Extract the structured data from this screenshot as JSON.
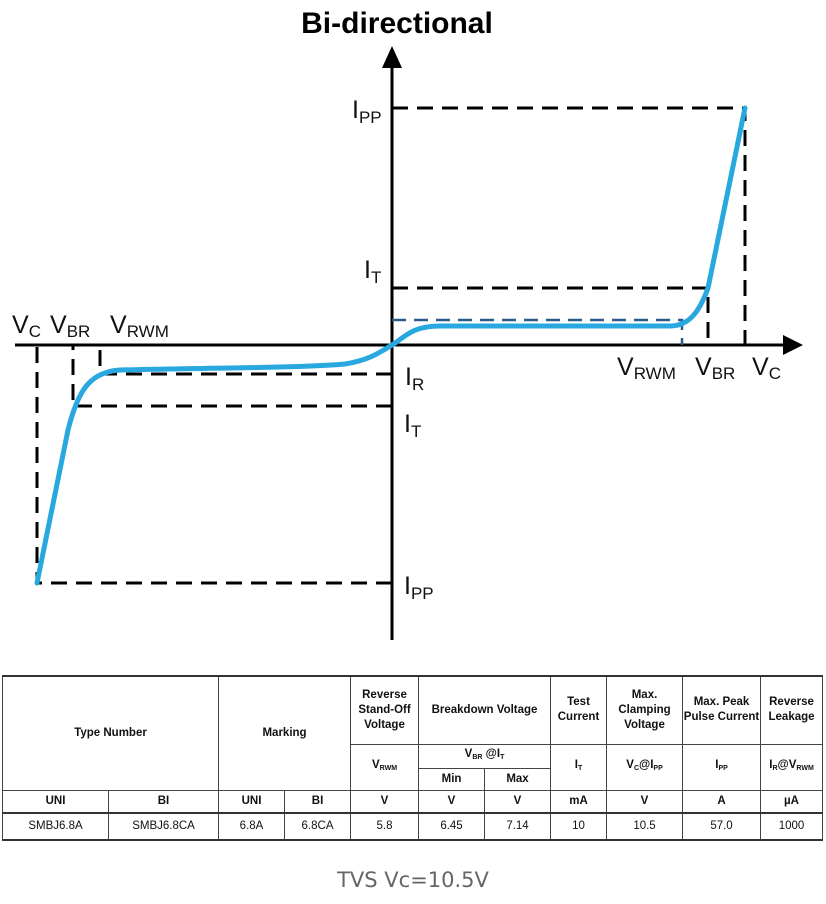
{
  "title": "Bi-directional",
  "labels": {
    "ipp_top": [
      "I",
      "PP"
    ],
    "it_top": [
      "I",
      "T"
    ],
    "vc_left": [
      "V",
      "C"
    ],
    "vbr_left": [
      "V",
      "BR"
    ],
    "vrwm_left": [
      "V",
      "RWM"
    ],
    "vrwm_right": [
      "V",
      "RWM"
    ],
    "vbr_right": [
      "V",
      "BR"
    ],
    "vc_right": [
      "V",
      "C"
    ],
    "ir": [
      "I",
      "R"
    ],
    "it_bottom": [
      "I",
      "T"
    ],
    "ipp_bottom": [
      "I",
      "PP"
    ]
  },
  "colors": {
    "curve": "#29a8e0",
    "vrwm_dash": "#2d5a8c",
    "axis": "#000000"
  },
  "table": {
    "headers": {
      "type_number": "Type Number",
      "marking": "Marking",
      "standoff": "Reverse Stand-Off Voltage",
      "breakdown": "Breakdown Voltage",
      "test_current": "Test Current",
      "clamping": "Max. Clamping Voltage",
      "peak_pulse": "Max. Peak Pulse Current",
      "leakage": "Reverse Leakage"
    },
    "symbols": {
      "vrwm": [
        "V",
        "RWM"
      ],
      "vbr_it": [
        "V",
        "BR",
        " @I",
        "T"
      ],
      "min": "Min",
      "max": "Max",
      "it": [
        "I",
        "T"
      ],
      "vc_ipp": [
        "V",
        "C",
        "@I",
        "PP"
      ],
      "ipp": [
        "I",
        "PP"
      ],
      "ir_vrwm": [
        "I",
        "R",
        "@V",
        "RWM"
      ]
    },
    "units": [
      "UNI",
      "BI",
      "UNI",
      "BI",
      "V",
      "V",
      "V",
      "mA",
      "V",
      "A",
      "µA"
    ],
    "rows": [
      [
        "SMBJ6.8A",
        "SMBJ6.8CA",
        "6.8A",
        "6.8CA",
        "5.8",
        "6.45",
        "7.14",
        "10",
        "10.5",
        "57.0",
        "1000"
      ]
    ]
  },
  "caption": "TVS Vc=10.5V"
}
